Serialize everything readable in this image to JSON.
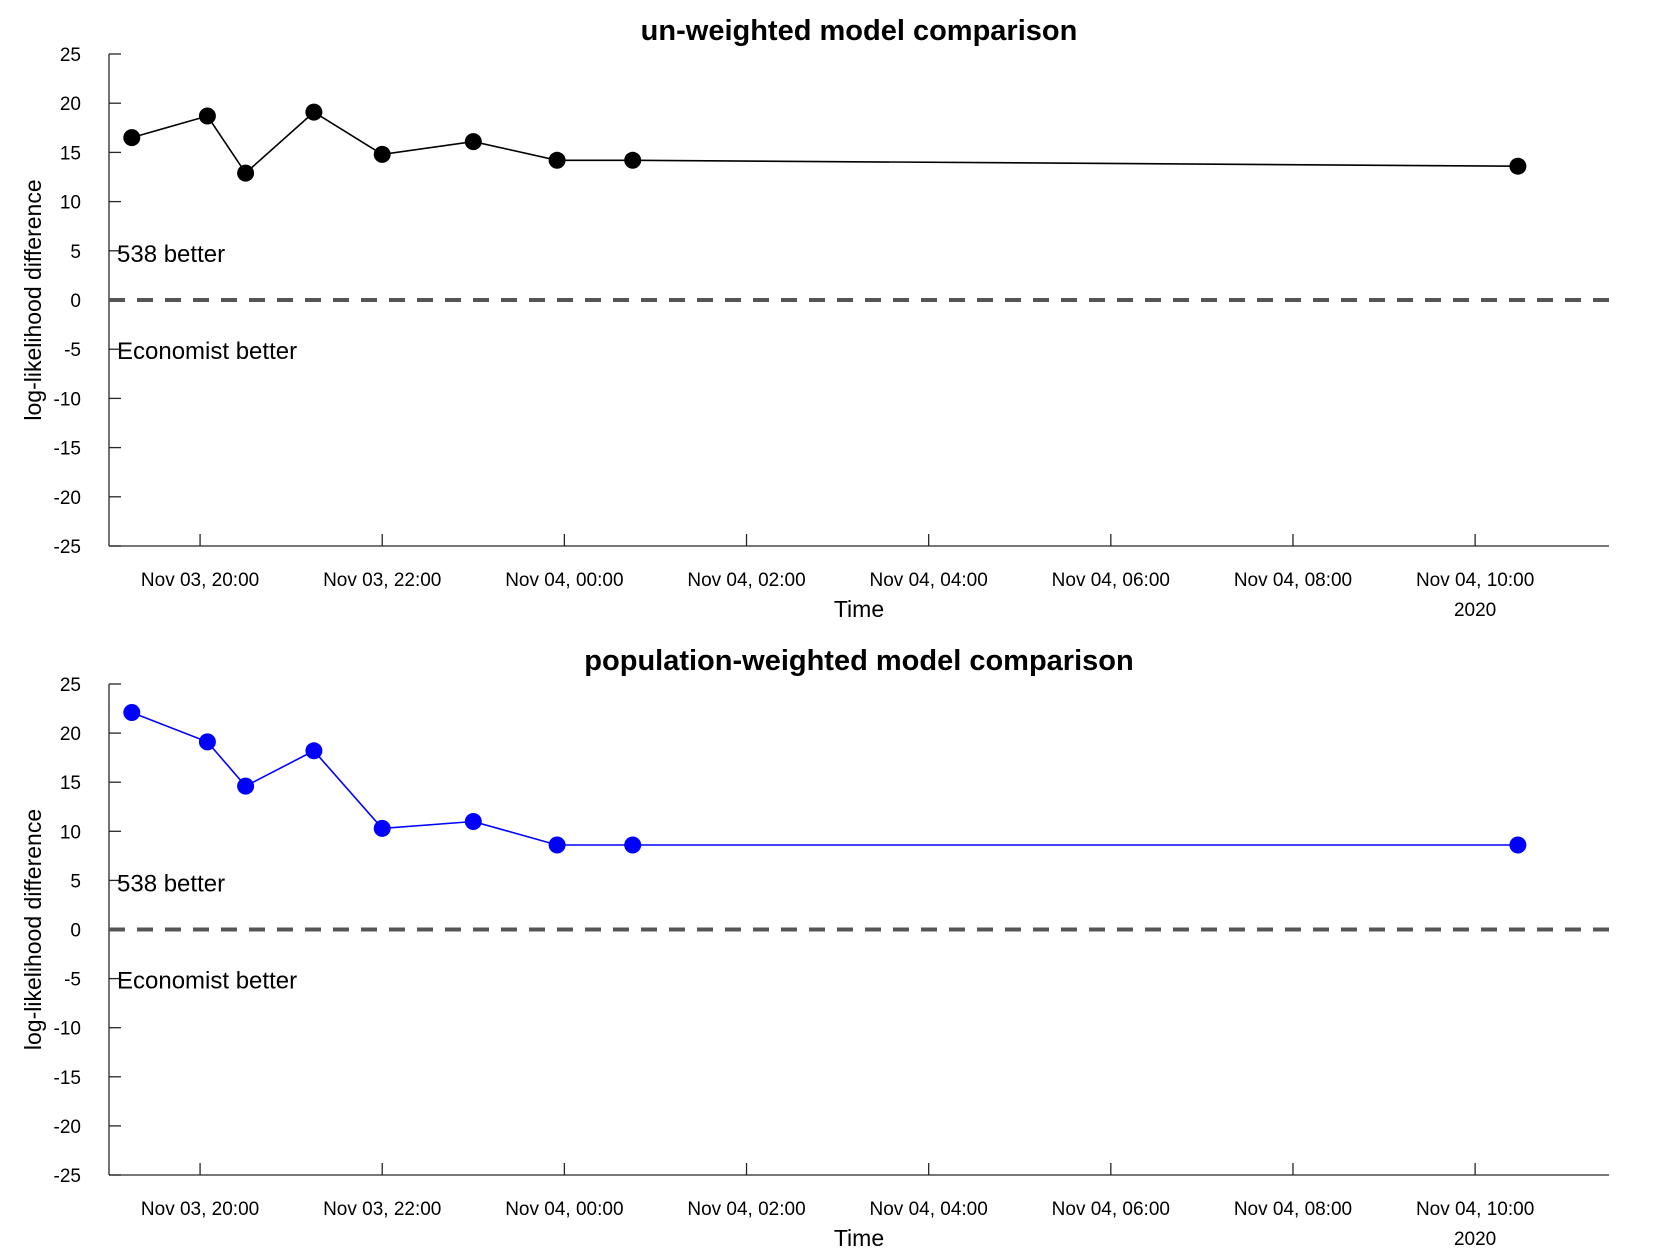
{
  "chart_data": [
    {
      "type": "line",
      "title": "un-weighted model comparison",
      "xlabel": "Time",
      "ylabel": "log-likelihood difference",
      "ylim": [
        -25,
        25
      ],
      "yticks": [
        25,
        20,
        15,
        10,
        5,
        0,
        -5,
        -10,
        -15,
        -20,
        -25
      ],
      "xticks": [
        "Nov 03, 20:00",
        "Nov 03, 22:00",
        "Nov 04, 00:00",
        "Nov 04, 02:00",
        "Nov 04, 04:00",
        "Nov 04, 06:00",
        "Nov 04, 08:00",
        "Nov 04, 10:00"
      ],
      "xtick_hours": [
        20,
        22,
        24,
        26,
        28,
        30,
        32,
        34
      ],
      "x_secondary_label": "2020",
      "xlim_hours": [
        19.0,
        35.47
      ],
      "series": [
        {
          "color": "#000000",
          "x_hours": [
            19.25,
            20.08,
            20.5,
            21.25,
            22.0,
            23.0,
            23.92,
            24.75,
            34.47
          ],
          "y": [
            16.5,
            18.7,
            12.9,
            19.1,
            14.8,
            16.1,
            14.2,
            14.2,
            13.6
          ]
        }
      ],
      "reference_line": {
        "y": 0,
        "style": "dashed",
        "color": "#555555"
      },
      "annotations": [
        {
          "text": "538 better",
          "y": 4.7
        },
        {
          "text": "Economist better",
          "y": -5.2
        }
      ]
    },
    {
      "type": "line",
      "title": "population-weighted model comparison",
      "xlabel": "Time",
      "ylabel": "log-likelihood difference",
      "ylim": [
        -25,
        25
      ],
      "yticks": [
        25,
        20,
        15,
        10,
        5,
        0,
        -5,
        -10,
        -15,
        -20,
        -25
      ],
      "xticks": [
        "Nov 03, 20:00",
        "Nov 03, 22:00",
        "Nov 04, 00:00",
        "Nov 04, 02:00",
        "Nov 04, 04:00",
        "Nov 04, 06:00",
        "Nov 04, 08:00",
        "Nov 04, 10:00"
      ],
      "xtick_hours": [
        20,
        22,
        24,
        26,
        28,
        30,
        32,
        34
      ],
      "x_secondary_label": "2020",
      "xlim_hours": [
        19.0,
        35.47
      ],
      "series": [
        {
          "color": "#0000ff",
          "x_hours": [
            19.25,
            20.08,
            20.5,
            21.25,
            22.0,
            23.0,
            23.92,
            24.75,
            34.47
          ],
          "y": [
            22.1,
            19.1,
            14.6,
            18.2,
            10.3,
            11.0,
            8.6,
            8.6,
            8.6
          ]
        }
      ],
      "reference_line": {
        "y": 0,
        "style": "dashed",
        "color": "#555555"
      },
      "annotations": [
        {
          "text": "538 better",
          "y": 4.7
        },
        {
          "text": "Economist better",
          "y": -5.2
        }
      ]
    }
  ]
}
